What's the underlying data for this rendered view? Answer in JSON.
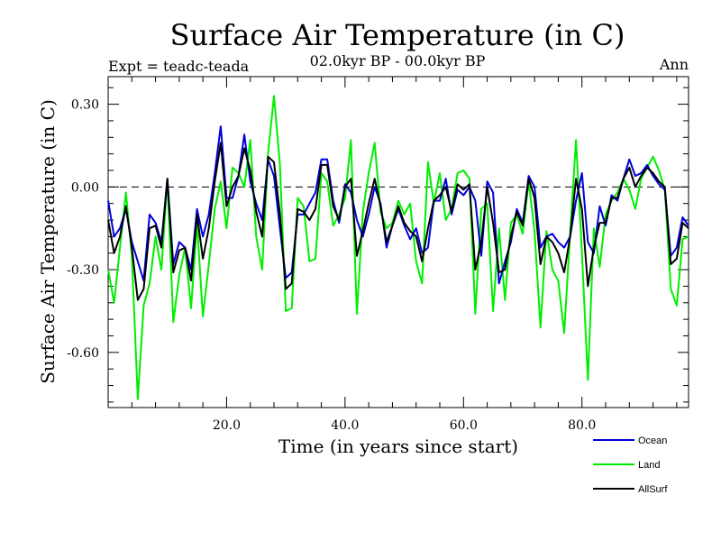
{
  "chart_data": {
    "type": "line",
    "title": "Surface Air Temperature (in C)",
    "subtitle": "02.0kyr BP - 00.0kyr BP",
    "expt_label": "Expt = teadc-teada",
    "period_label": "Ann",
    "xlabel": "Time (in years since start)",
    "ylabel": "Surface Air Temperature (in C)",
    "xlim": [
      0,
      98
    ],
    "ylim": [
      -0.8,
      0.4
    ],
    "xticks": [
      20,
      40,
      60,
      80
    ],
    "xtick_labels": [
      "20.0",
      "40.0",
      "60.0",
      "80.0"
    ],
    "yticks": [
      0.3,
      0,
      -0.3,
      -0.6
    ],
    "ytick_labels": [
      "0.30",
      "0.00",
      "-0.30",
      "-0.60"
    ],
    "reference_line": 0,
    "x": [
      0,
      1,
      2,
      3,
      4,
      5,
      6,
      7,
      8,
      9,
      10,
      11,
      12,
      13,
      14,
      15,
      16,
      17,
      18,
      19,
      20,
      21,
      22,
      23,
      24,
      25,
      26,
      27,
      28,
      29,
      30,
      31,
      32,
      33,
      34,
      35,
      36,
      37,
      38,
      39,
      40,
      41,
      42,
      43,
      44,
      45,
      46,
      47,
      48,
      49,
      50,
      51,
      52,
      53,
      54,
      55,
      56,
      57,
      58,
      59,
      60,
      61,
      62,
      63,
      64,
      65,
      66,
      67,
      68,
      69,
      70,
      71,
      72,
      73,
      74,
      75,
      76,
      77,
      78,
      79,
      80,
      81,
      82,
      83,
      84,
      85,
      86,
      87,
      88,
      89,
      90,
      91,
      92,
      93,
      94,
      95,
      96,
      97,
      98
    ],
    "series": [
      {
        "name": "Ocean",
        "color": "#0000dd",
        "values": [
          -0.05,
          -0.18,
          -0.15,
          -0.08,
          -0.2,
          -0.27,
          -0.34,
          -0.1,
          -0.13,
          -0.2,
          0.03,
          -0.28,
          -0.2,
          -0.22,
          -0.3,
          -0.08,
          -0.18,
          -0.1,
          0.05,
          0.22,
          -0.04,
          -0.04,
          0.04,
          0.19,
          0.02,
          -0.06,
          -0.12,
          0.1,
          0.04,
          -0.15,
          -0.33,
          -0.31,
          -0.1,
          -0.1,
          -0.06,
          -0.02,
          0.1,
          0.1,
          -0.05,
          -0.13,
          0.01,
          -0.02,
          -0.12,
          -0.18,
          -0.1,
          0.0,
          -0.06,
          -0.22,
          -0.14,
          -0.08,
          -0.14,
          -0.19,
          -0.15,
          -0.24,
          -0.22,
          -0.05,
          -0.05,
          0.03,
          -0.1,
          -0.01,
          -0.03,
          0.0,
          -0.05,
          -0.25,
          0.02,
          -0.02,
          -0.35,
          -0.27,
          -0.2,
          -0.08,
          -0.13,
          0.04,
          0.0,
          -0.22,
          -0.18,
          -0.17,
          -0.2,
          -0.22,
          -0.18,
          -0.05,
          0.05,
          -0.2,
          -0.24,
          -0.07,
          -0.14,
          -0.03,
          -0.05,
          0.03,
          0.1,
          0.04,
          0.05,
          0.08,
          0.04,
          0.01,
          -0.01,
          -0.25,
          -0.22,
          -0.11,
          -0.14
        ]
      },
      {
        "name": "Land",
        "color": "#00ee00",
        "values": [
          -0.3,
          -0.42,
          -0.22,
          -0.02,
          -0.25,
          -0.77,
          -0.43,
          -0.35,
          -0.18,
          -0.3,
          0.03,
          -0.49,
          -0.32,
          -0.22,
          -0.44,
          -0.13,
          -0.47,
          -0.28,
          -0.08,
          0.02,
          -0.15,
          0.07,
          0.05,
          0.0,
          0.17,
          -0.18,
          -0.3,
          0.12,
          0.33,
          0.08,
          -0.45,
          -0.44,
          -0.04,
          -0.07,
          -0.27,
          -0.26,
          0.05,
          0.02,
          -0.14,
          -0.1,
          -0.04,
          0.17,
          -0.46,
          -0.09,
          0.05,
          0.16,
          -0.09,
          -0.15,
          -0.13,
          -0.05,
          -0.1,
          -0.06,
          -0.27,
          -0.35,
          0.09,
          -0.06,
          0.05,
          -0.12,
          -0.08,
          0.05,
          0.06,
          0.03,
          -0.46,
          -0.08,
          -0.06,
          -0.45,
          -0.15,
          -0.41,
          -0.13,
          -0.1,
          -0.17,
          0.02,
          -0.16,
          -0.51,
          -0.16,
          -0.3,
          -0.34,
          -0.53,
          -0.17,
          0.17,
          -0.24,
          -0.7,
          -0.15,
          -0.29,
          -0.1,
          -0.05,
          -0.02,
          0.03,
          -0.01,
          -0.08,
          0.03,
          0.07,
          0.11,
          0.06,
          -0.01,
          -0.37,
          -0.43,
          -0.19,
          -0.18
        ]
      },
      {
        "name": "AllSurf",
        "color": "#000000",
        "values": [
          -0.12,
          -0.24,
          -0.18,
          -0.07,
          -0.22,
          -0.41,
          -0.37,
          -0.15,
          -0.14,
          -0.22,
          0.03,
          -0.31,
          -0.23,
          -0.22,
          -0.34,
          -0.1,
          -0.26,
          -0.15,
          0.02,
          0.16,
          -0.07,
          0.0,
          0.04,
          0.14,
          0.06,
          -0.09,
          -0.18,
          0.11,
          0.09,
          -0.1,
          -0.37,
          -0.35,
          -0.08,
          -0.09,
          -0.12,
          -0.08,
          0.08,
          0.08,
          -0.07,
          -0.12,
          0.0,
          0.03,
          -0.25,
          -0.16,
          -0.06,
          0.03,
          -0.07,
          -0.2,
          -0.14,
          -0.07,
          -0.13,
          -0.16,
          -0.18,
          -0.27,
          -0.15,
          -0.05,
          -0.03,
          0.0,
          -0.09,
          0.01,
          -0.01,
          0.01,
          -0.3,
          -0.2,
          0.0,
          -0.13,
          -0.31,
          -0.3,
          -0.18,
          -0.09,
          -0.14,
          0.03,
          -0.04,
          -0.28,
          -0.18,
          -0.2,
          -0.24,
          -0.31,
          -0.18,
          0.03,
          -0.08,
          -0.36,
          -0.22,
          -0.13,
          -0.13,
          -0.04,
          -0.04,
          0.03,
          0.07,
          0.0,
          0.04,
          0.07,
          0.05,
          0.02,
          0.0,
          -0.28,
          -0.26,
          -0.13,
          -0.15
        ]
      }
    ]
  }
}
